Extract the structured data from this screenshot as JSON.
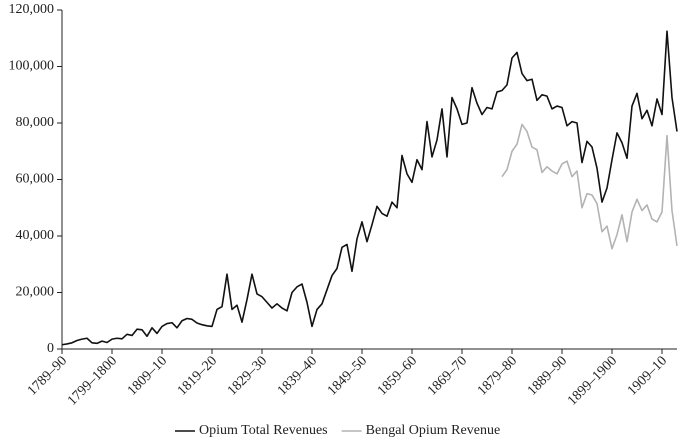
{
  "chart_data": {
    "type": "line",
    "categories": [
      "1789–90",
      null,
      null,
      null,
      null,
      null,
      null,
      null,
      null,
      null,
      "1799–1800",
      null,
      null,
      null,
      null,
      null,
      null,
      null,
      null,
      null,
      "1809–10",
      null,
      null,
      null,
      null,
      null,
      null,
      null,
      null,
      null,
      "1819–20",
      null,
      null,
      null,
      null,
      null,
      null,
      null,
      null,
      null,
      "1829–30",
      null,
      null,
      null,
      null,
      null,
      null,
      null,
      null,
      null,
      "1839–40",
      null,
      null,
      null,
      null,
      null,
      null,
      null,
      null,
      null,
      "1849–50",
      null,
      null,
      null,
      null,
      null,
      null,
      null,
      null,
      null,
      "1859–60",
      null,
      null,
      null,
      null,
      null,
      null,
      null,
      null,
      null,
      "1869–70",
      null,
      null,
      null,
      null,
      null,
      null,
      null,
      null,
      null,
      "1879–80",
      null,
      null,
      null,
      null,
      null,
      null,
      null,
      null,
      null,
      "1889–90",
      null,
      null,
      null,
      null,
      null,
      null,
      null,
      null,
      null,
      "1899–1900",
      null,
      null,
      null,
      null,
      null,
      null,
      null,
      null,
      null,
      "1909–10",
      null,
      null,
      null
    ],
    "series": [
      {
        "name": "Opium Total Revenues",
        "color": "#111111",
        "values": [
          1500,
          1800,
          2200,
          3000,
          3500,
          3800,
          2200,
          2000,
          2800,
          2300,
          3500,
          3800,
          3600,
          5200,
          4800,
          7000,
          6800,
          4500,
          7500,
          5500,
          8000,
          9000,
          9300,
          7500,
          10000,
          10800,
          10500,
          9200,
          8600,
          8200,
          8000,
          14000,
          15000,
          26500,
          14000,
          15500,
          9500,
          17500,
          26500,
          19500,
          18500,
          16500,
          14500,
          16000,
          14500,
          13500,
          20000,
          22000,
          23000,
          16500,
          8000,
          14000,
          16000,
          21000,
          26000,
          28500,
          36000,
          37000,
          27500,
          39000,
          45000,
          38000,
          44000,
          50500,
          48000,
          47000,
          52000,
          50000,
          68500,
          62000,
          59000,
          67000,
          63500,
          80500,
          68000,
          74000,
          85000,
          68000,
          89000,
          85000,
          79500,
          80000,
          92500,
          87000,
          83000,
          85500,
          85000,
          91000,
          91500,
          93500,
          103000,
          105000,
          97500,
          95000,
          95500,
          88000,
          90000,
          89500,
          85000,
          86000,
          85500,
          79000,
          80500,
          80000,
          66000,
          73500,
          71500,
          64000,
          52000,
          57000,
          67000,
          76500,
          73000,
          67500,
          86000,
          90500,
          81500,
          84500,
          79000,
          88500,
          83000,
          112500,
          89000,
          77000
        ]
      },
      {
        "name": "Bengal Opium Revenue",
        "color": "#b3b3b3",
        "values": [
          null,
          null,
          null,
          null,
          null,
          null,
          null,
          null,
          null,
          null,
          null,
          null,
          null,
          null,
          null,
          null,
          null,
          null,
          null,
          null,
          null,
          null,
          null,
          null,
          null,
          null,
          null,
          null,
          null,
          null,
          null,
          null,
          null,
          null,
          null,
          null,
          null,
          null,
          null,
          null,
          null,
          null,
          null,
          null,
          null,
          null,
          null,
          null,
          null,
          null,
          null,
          null,
          null,
          null,
          null,
          null,
          null,
          null,
          null,
          null,
          null,
          null,
          null,
          null,
          null,
          null,
          null,
          null,
          null,
          null,
          null,
          null,
          null,
          null,
          null,
          null,
          null,
          null,
          null,
          null,
          null,
          null,
          null,
          null,
          null,
          null,
          null,
          null,
          61000,
          63500,
          70000,
          72500,
          79500,
          77000,
          71500,
          70500,
          62500,
          64500,
          63000,
          62000,
          65500,
          66500,
          61000,
          63000,
          50000,
          55000,
          54500,
          51500,
          41500,
          43500,
          35500,
          40500,
          47500,
          38000,
          48500,
          53000,
          49000,
          51000,
          46000,
          45000,
          48500,
          75500,
          49000,
          36500
        ]
      }
    ],
    "ylim": [
      0,
      120000
    ],
    "yticks": [
      0,
      {
        "value": 20000,
        "label": "20,000"
      },
      {
        "value": 40000,
        "label": "40,000"
      },
      {
        "value": 60000,
        "label": "60,000"
      },
      {
        "value": 80000,
        "label": "80,000"
      },
      {
        "value": 100000,
        "label": "100,000"
      },
      {
        "value": 120000,
        "label": "120,000"
      }
    ],
    "grid": false,
    "legend": "bottom"
  }
}
